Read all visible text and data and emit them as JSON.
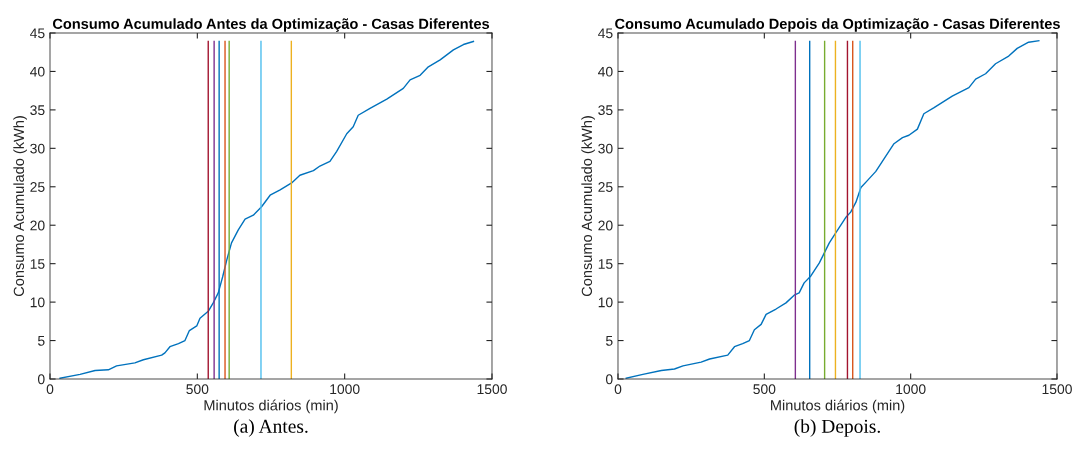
{
  "chart_data": [
    {
      "type": "line",
      "title": "Consumo Acumulado Antes da Optimização - Casas Diferentes",
      "xlabel": "Minutos diários (min)",
      "ylabel": "Consumo Acumulado (kWh)",
      "annotations": [
        "(a) Antes."
      ],
      "xlim": [
        0,
        1500
      ],
      "ylim": [
        0,
        45
      ],
      "xticks": [
        0,
        500,
        1000,
        1500
      ],
      "yticks": [
        0,
        5,
        10,
        15,
        20,
        25,
        30,
        35,
        40,
        45
      ],
      "series": [
        {
          "color": "#0072bd",
          "x": [
            34,
            102,
            153,
            198,
            226,
            288,
            317,
            379,
            390,
            407,
            436,
            458,
            473,
            498,
            509,
            537,
            554,
            571,
            586,
            600,
            616,
            639,
            662,
            690,
            718,
            747,
            781,
            820,
            848,
            894,
            916,
            950,
            973,
            1007,
            1029,
            1046,
            1086,
            1143,
            1199,
            1222,
            1256,
            1284,
            1324,
            1369,
            1403,
            1437
          ],
          "values": [
            0.1,
            0.6,
            1.1,
            1.2,
            1.7,
            2.1,
            2.5,
            3.1,
            3.4,
            4.2,
            4.6,
            5.0,
            6.3,
            6.9,
            7.9,
            8.8,
            9.9,
            11.2,
            13.3,
            15.5,
            17.7,
            19.4,
            20.8,
            21.3,
            22.4,
            23.9,
            24.6,
            25.5,
            26.5,
            27.1,
            27.7,
            28.3,
            29.6,
            31.9,
            32.8,
            34.3,
            35.2,
            36.4,
            37.8,
            38.9,
            39.5,
            40.6,
            41.5,
            42.8,
            43.5,
            43.9
          ]
        },
        {
          "color": "#a2142f",
          "x": [
            537,
            537
          ],
          "values": [
            0,
            43.9
          ]
        },
        {
          "color": "#7e2f8e",
          "x": [
            557,
            557
          ],
          "values": [
            0,
            43.9
          ]
        },
        {
          "color": "#0072bd",
          "x": [
            574,
            574
          ],
          "values": [
            0,
            43.9
          ]
        },
        {
          "color": "#d95319",
          "x": [
            594,
            594
          ],
          "values": [
            0,
            43.9
          ]
        },
        {
          "color": "#77ac30",
          "x": [
            608,
            608
          ],
          "values": [
            0,
            43.9
          ]
        },
        {
          "color": "#4dbeee",
          "x": [
            716,
            716
          ],
          "values": [
            0,
            43.9
          ]
        },
        {
          "color": "#edb120",
          "x": [
            819,
            819
          ],
          "values": [
            0,
            43.9
          ]
        }
      ]
    },
    {
      "type": "line",
      "title": "Consumo Acumulado Depois da Optimização - Casas Diferentes",
      "xlabel": "Minutos diários (min)",
      "ylabel": "Consumo Acumulado (kWh)",
      "annotations": [
        "(b) Depois."
      ],
      "xlim": [
        0,
        1500
      ],
      "ylim": [
        0,
        45
      ],
      "xticks": [
        0,
        500,
        1000,
        1500
      ],
      "yticks": [
        0,
        5,
        10,
        15,
        20,
        25,
        30,
        35,
        40,
        45
      ],
      "series": [
        {
          "color": "#0072bd",
          "x": [
            28,
            85,
            148,
            193,
            222,
            284,
            313,
            375,
            398,
            426,
            449,
            466,
            489,
            506,
            540,
            574,
            602,
            619,
            636,
            659,
            688,
            705,
            722,
            744,
            778,
            795,
            813,
            830,
            852,
            881,
            915,
            943,
            972,
            994,
            1023,
            1045,
            1080,
            1142,
            1199,
            1222,
            1256,
            1290,
            1335,
            1364,
            1403,
            1438
          ],
          "values": [
            0.1,
            0.6,
            1.1,
            1.3,
            1.7,
            2.2,
            2.6,
            3.1,
            4.2,
            4.6,
            5.0,
            6.4,
            7.1,
            8.4,
            9.1,
            9.9,
            10.9,
            11.2,
            12.5,
            13.4,
            15.1,
            16.4,
            17.7,
            19.0,
            21.0,
            21.7,
            23.0,
            24.9,
            25.8,
            27.0,
            29.0,
            30.6,
            31.4,
            31.7,
            32.5,
            34.5,
            35.3,
            36.8,
            37.9,
            39.0,
            39.7,
            41.0,
            42.0,
            43.0,
            43.8,
            44.0
          ]
        },
        {
          "color": "#7e2f8e",
          "x": [
            606,
            606
          ],
          "values": [
            0,
            43.9
          ]
        },
        {
          "color": "#0072bd",
          "x": [
            655,
            655
          ],
          "values": [
            0,
            43.9
          ]
        },
        {
          "color": "#77ac30",
          "x": [
            706,
            706
          ],
          "values": [
            0,
            43.9
          ]
        },
        {
          "color": "#edb120",
          "x": [
            743,
            743
          ],
          "values": [
            0,
            43.9
          ]
        },
        {
          "color": "#a2142f",
          "x": [
            784,
            784
          ],
          "values": [
            0,
            43.9
          ]
        },
        {
          "color": "#d95319",
          "x": [
            802,
            802
          ],
          "values": [
            0,
            43.9
          ]
        },
        {
          "color": "#4dbeee",
          "x": [
            827,
            827
          ],
          "values": [
            0,
            43.9
          ]
        }
      ]
    }
  ]
}
